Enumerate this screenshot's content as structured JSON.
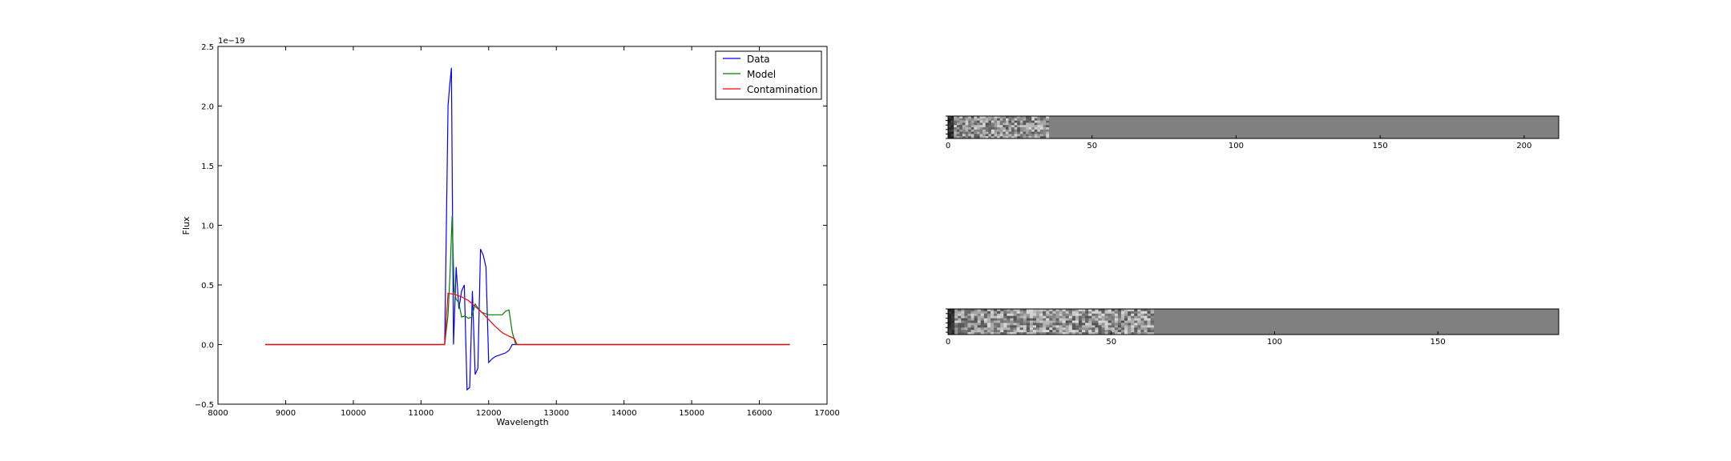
{
  "chart_data": [
    {
      "type": "line",
      "title": "",
      "xlabel": "Wavelength",
      "ylabel": "Flux",
      "xlim": [
        8000,
        17000
      ],
      "ylim": [
        -0.5,
        2.5
      ],
      "y_offset_label": "1e−19",
      "xticks": [
        8000,
        9000,
        10000,
        11000,
        12000,
        13000,
        14000,
        15000,
        16000,
        17000
      ],
      "yticks": [
        -0.5,
        0.0,
        0.5,
        1.0,
        1.5,
        2.0,
        2.5
      ],
      "grid": false,
      "legend": "top-right",
      "series": [
        {
          "name": "Data",
          "color": "#0000ff",
          "x": [
            8700,
            11350,
            11400,
            11420,
            11450,
            11480,
            11520,
            11560,
            11600,
            11640,
            11680,
            11720,
            11760,
            11800,
            11840,
            11880,
            11920,
            11960,
            12000,
            12050,
            12100,
            12150,
            12200,
            12250,
            12300,
            12350,
            12400,
            12420,
            16450
          ],
          "y": [
            0.0,
            0.0,
            2.0,
            2.15,
            2.32,
            0.0,
            0.65,
            0.3,
            0.45,
            0.5,
            -0.38,
            -0.36,
            0.45,
            -0.25,
            -0.2,
            0.8,
            0.75,
            0.65,
            -0.15,
            -0.12,
            -0.1,
            -0.09,
            -0.08,
            -0.07,
            -0.05,
            0.0,
            0.0,
            0.0,
            0.0
          ]
        },
        {
          "name": "Model",
          "color": "#008000",
          "x": [
            8700,
            11350,
            11400,
            11430,
            11460,
            11490,
            11520,
            11560,
            11600,
            11650,
            11700,
            11750,
            11800,
            11850,
            11900,
            11950,
            12000,
            12100,
            12200,
            12250,
            12300,
            12350,
            12400,
            12420,
            16450
          ],
          "y": [
            0.0,
            0.0,
            0.25,
            0.6,
            1.08,
            0.45,
            0.38,
            0.35,
            0.23,
            0.24,
            0.22,
            0.23,
            0.34,
            0.3,
            0.27,
            0.26,
            0.25,
            0.25,
            0.25,
            0.28,
            0.29,
            0.1,
            0.0,
            0.0,
            0.0
          ]
        },
        {
          "name": "Contamination",
          "color": "#ff0000",
          "x": [
            8700,
            11350,
            11400,
            11500,
            11600,
            11700,
            11800,
            11900,
            12000,
            12100,
            12200,
            12300,
            12380,
            12420,
            16450
          ],
          "y": [
            0.0,
            0.0,
            0.43,
            0.42,
            0.4,
            0.37,
            0.32,
            0.27,
            0.21,
            0.15,
            0.1,
            0.07,
            0.05,
            0.0,
            0.0
          ]
        }
      ]
    },
    {
      "type": "heatmap",
      "xlim": [
        0,
        212
      ],
      "xticks": [
        0,
        50,
        100,
        150,
        200
      ],
      "filled_columns": 35
    },
    {
      "type": "heatmap",
      "xlim": [
        0,
        187
      ],
      "xticks": [
        0,
        50,
        100,
        150
      ],
      "filled_columns": 63
    }
  ]
}
